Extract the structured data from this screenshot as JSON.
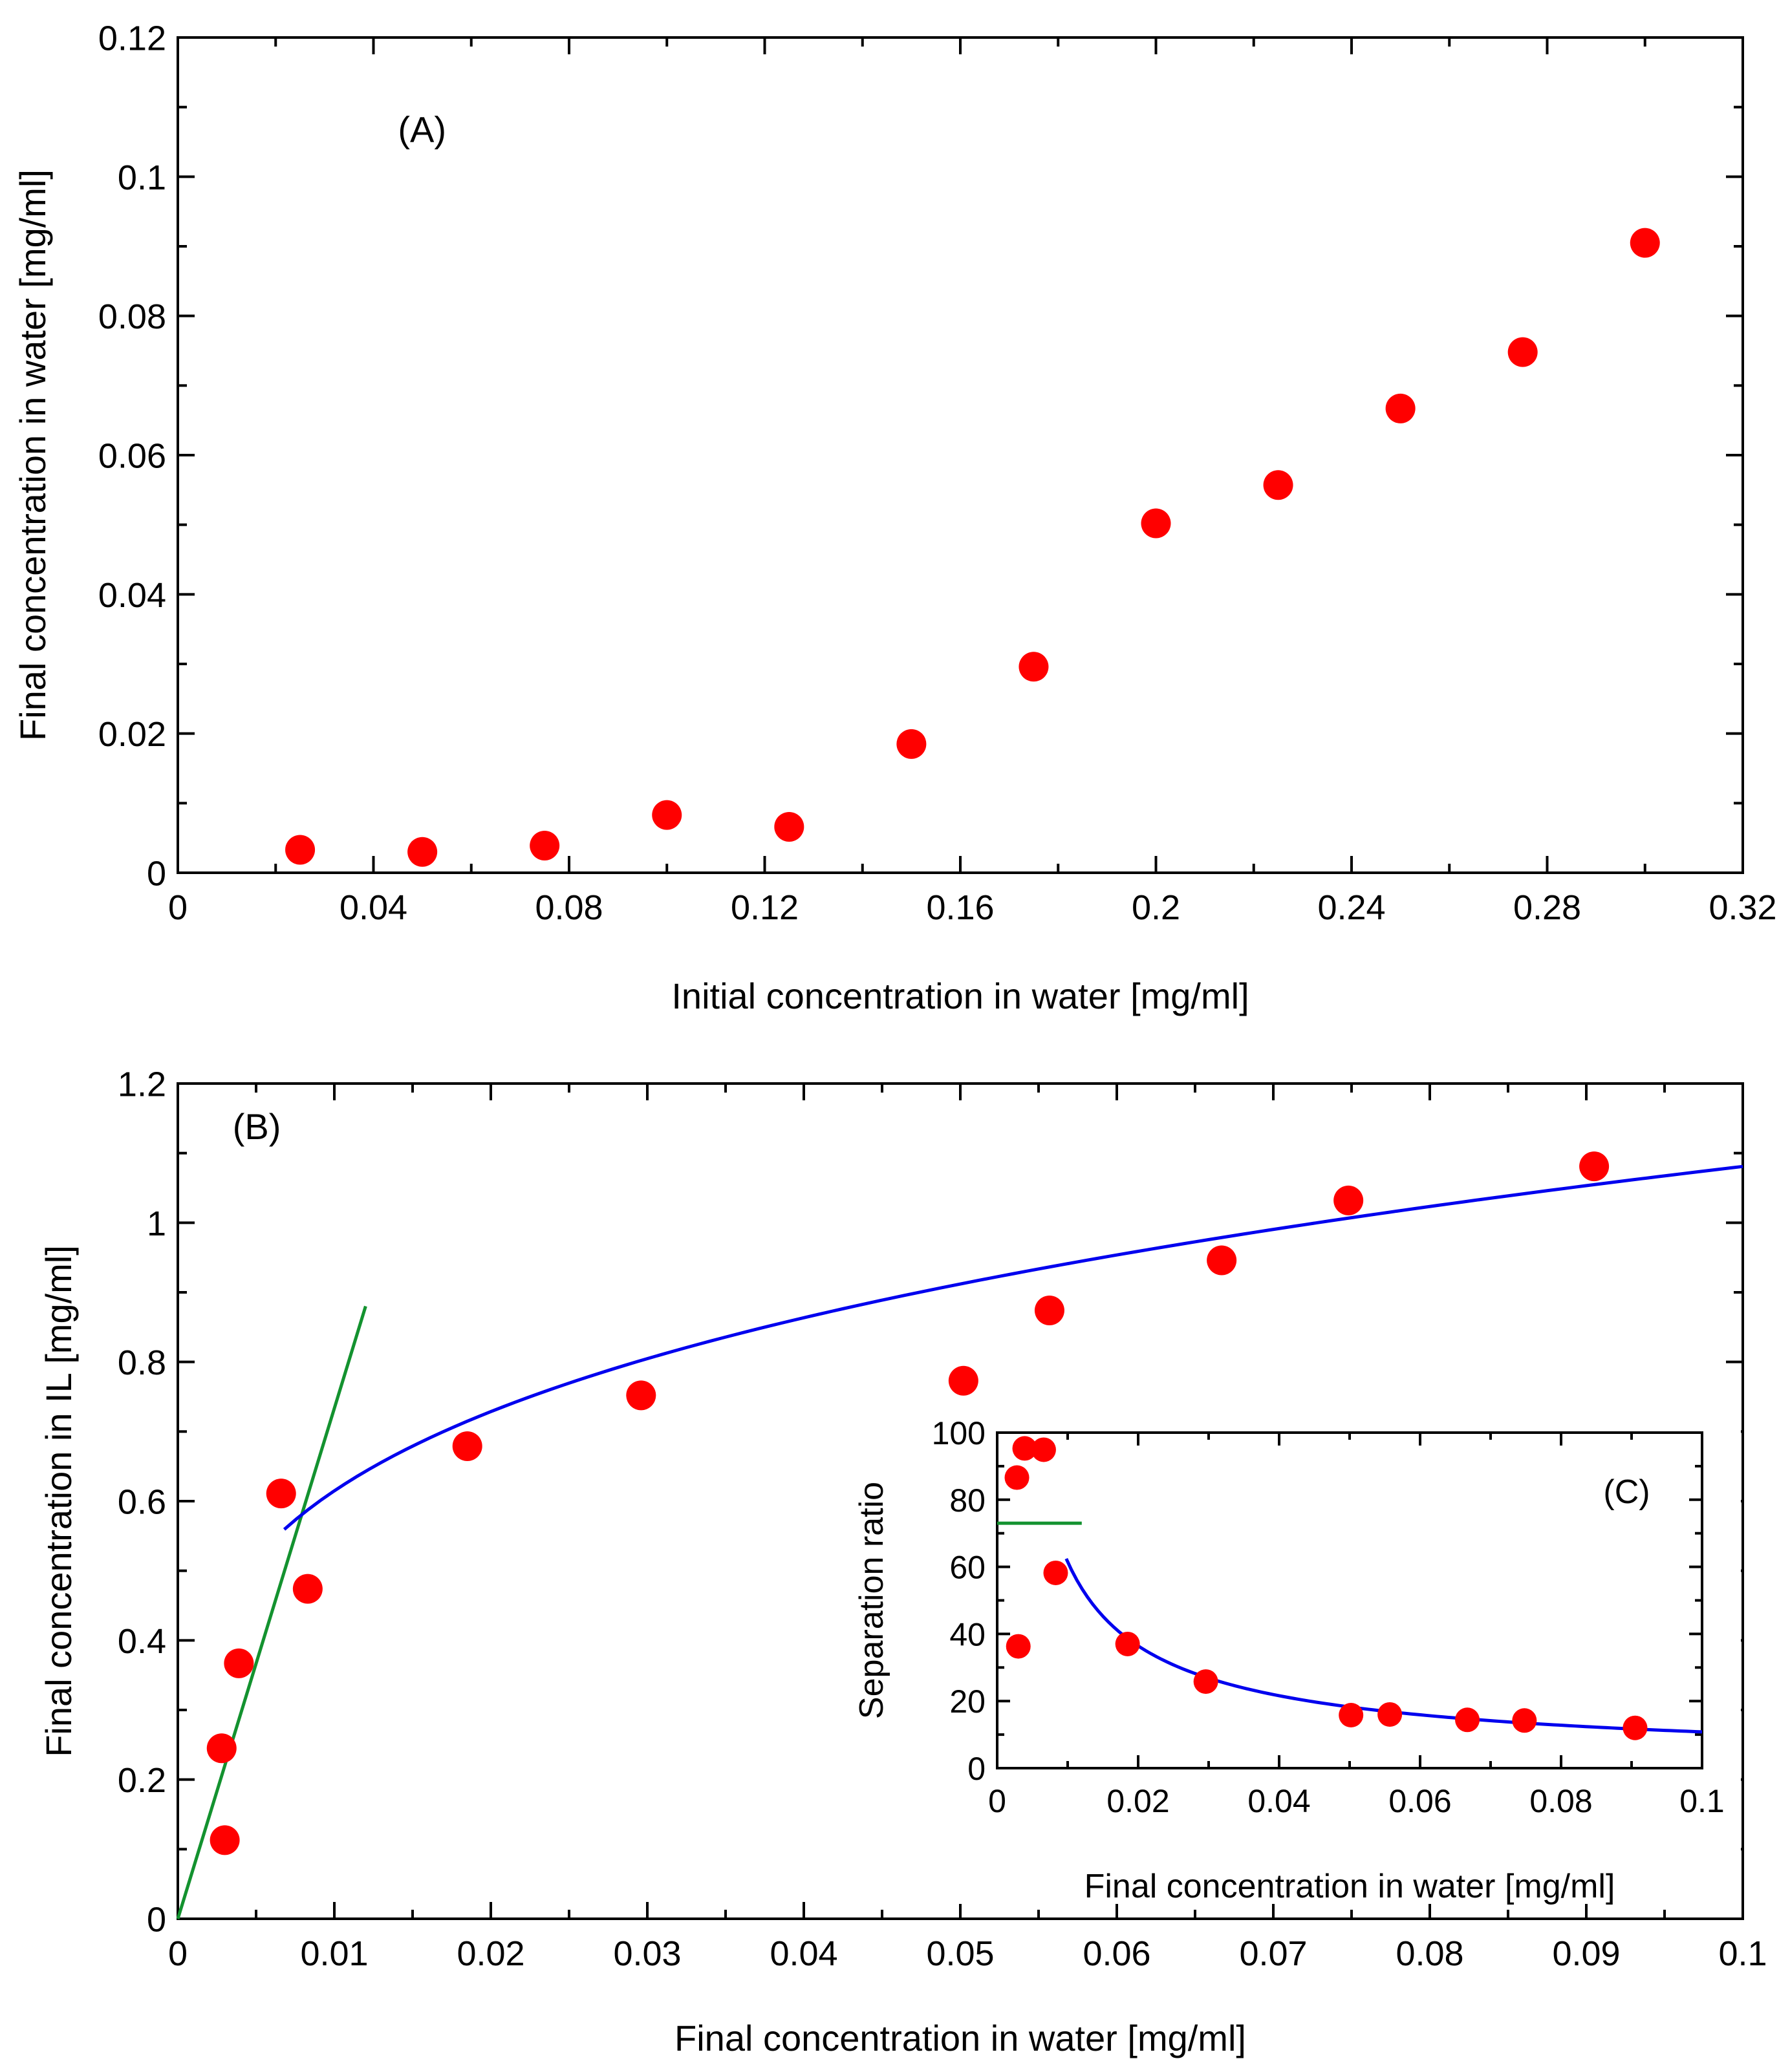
{
  "colors": {
    "points": "#ff0000",
    "fit_power": "#0000ee",
    "fit_linear": "#13922f",
    "axes": "#000000"
  },
  "chart_data": [
    {
      "id": "A",
      "type": "scatter",
      "panel_label": "(A)",
      "xlabel": "Initial concentration in water [mg/ml]",
      "ylabel": "Final concentration in water [mg/ml]",
      "xlim": [
        0,
        0.32
      ],
      "ylim": [
        0,
        0.12
      ],
      "xticks": [
        0,
        0.04,
        0.08,
        0.12,
        0.16,
        0.2,
        0.24,
        0.28,
        0.32
      ],
      "xtick_labels": [
        "0",
        "0.04",
        "0.08",
        "0.12",
        "0.16",
        "0.2",
        "0.24",
        "0.28",
        "0.32"
      ],
      "yticks": [
        0,
        0.02,
        0.04,
        0.06,
        0.08,
        0.1,
        0.12
      ],
      "ytick_labels": [
        "0",
        "0.02",
        "0.04",
        "0.06",
        "0.08",
        "0.1",
        "0.12"
      ],
      "series": [
        {
          "name": "data",
          "x": [
            0.025,
            0.05,
            0.075,
            0.1,
            0.125,
            0.15,
            0.175,
            0.2,
            0.225,
            0.25,
            0.275,
            0.3
          ],
          "y": [
            0.0033,
            0.003,
            0.0039,
            0.0083,
            0.0066,
            0.0185,
            0.0296,
            0.0502,
            0.0557,
            0.0667,
            0.0748,
            0.0905
          ]
        }
      ]
    },
    {
      "id": "B",
      "type": "scatter",
      "panel_label": "(B)",
      "xlabel": "Final concentration in water [mg/ml]",
      "ylabel": "Final concentration in IL [mg/ml]",
      "xlim": [
        0,
        0.1
      ],
      "ylim": [
        0,
        1.2
      ],
      "xticks": [
        0,
        0.01,
        0.02,
        0.03,
        0.04,
        0.05,
        0.06,
        0.07,
        0.08,
        0.09,
        0.1
      ],
      "xtick_labels": [
        "0",
        "0.01",
        "0.02",
        "0.03",
        "0.04",
        "0.05",
        "0.06",
        "0.07",
        "0.08",
        "0.09",
        "0.1"
      ],
      "yticks": [
        0,
        0.2,
        0.4,
        0.6,
        0.8,
        1,
        1.2
      ],
      "ytick_labels": [
        "0",
        "0.2",
        "0.4",
        "0.6",
        "0.8",
        "1",
        "1.2"
      ],
      "series": [
        {
          "name": "data",
          "x": [
            0.003,
            0.0028,
            0.0039,
            0.0066,
            0.0083,
            0.0185,
            0.0296,
            0.0502,
            0.0557,
            0.0667,
            0.0748,
            0.0905
          ],
          "y": [
            0.113,
            0.245,
            0.367,
            0.611,
            0.474,
            0.679,
            0.752,
            0.773,
            0.874,
            0.946,
            1.032,
            1.081
          ]
        }
      ],
      "fits": [
        {
          "name": "linear",
          "type": "line",
          "x": [
            0,
            0.012
          ],
          "y": [
            0,
            0.88
          ]
        },
        {
          "name": "power",
          "type": "curve",
          "x_range": [
            0.0068,
            0.1
          ],
          "a": 1.9,
          "b": 0.245
        }
      ]
    },
    {
      "id": "C",
      "type": "scatter",
      "inset_of": "B",
      "panel_label": "(C)",
      "xlabel": "Final concentration in water [mg/ml]",
      "ylabel": "Separation ratio",
      "xlim": [
        0,
        0.1
      ],
      "ylim": [
        0,
        100
      ],
      "xticks": [
        0,
        0.02,
        0.04,
        0.06,
        0.08,
        0.1
      ],
      "xtick_labels": [
        "0",
        "0.02",
        "0.04",
        "0.06",
        "0.08",
        "0.1"
      ],
      "yticks": [
        0,
        20,
        40,
        60,
        80,
        100
      ],
      "ytick_labels": [
        "0",
        "20",
        "40",
        "60",
        "80",
        "100"
      ],
      "series": [
        {
          "name": "data",
          "x": [
            0.003,
            0.0028,
            0.0039,
            0.0066,
            0.0083,
            0.0185,
            0.0296,
            0.0502,
            0.0557,
            0.0667,
            0.0748,
            0.0905
          ],
          "y": [
            36.3,
            86.6,
            95.3,
            94.9,
            58.2,
            37.0,
            25.8,
            15.8,
            16.0,
            14.4,
            14.2,
            12.0
          ]
        }
      ],
      "fits": [
        {
          "name": "linear",
          "type": "hline",
          "x": [
            0,
            0.012
          ],
          "y": 73
        },
        {
          "name": "power",
          "type": "curve",
          "x_range": [
            0.0098,
            0.1
          ],
          "a": 1.9,
          "b": 0.245,
          "scale": 0.5
        }
      ]
    }
  ]
}
